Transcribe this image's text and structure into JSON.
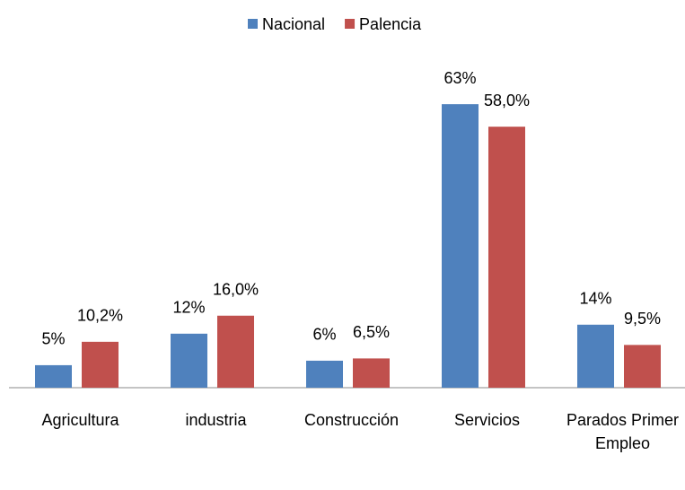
{
  "chart_data": {
    "type": "bar",
    "categories": [
      "Agricultura",
      "industria",
      "Construcción",
      "Servicios",
      "Parados Primer Empleo"
    ],
    "series": [
      {
        "name": "Nacional",
        "color": "#4f81bd",
        "values": [
          5,
          12,
          6,
          63,
          14
        ],
        "value_labels": [
          "5%",
          "12%",
          "6%",
          "63%",
          "14%"
        ]
      },
      {
        "name": "Palencia",
        "color": "#c0504d",
        "values": [
          10.2,
          16.0,
          6.5,
          58.0,
          9.5
        ],
        "value_labels": [
          "10,2%",
          "16,0%",
          "6,5%",
          "58,0%",
          "9,5%"
        ]
      }
    ],
    "ylim": [
      0,
      70
    ],
    "legend": "top"
  }
}
